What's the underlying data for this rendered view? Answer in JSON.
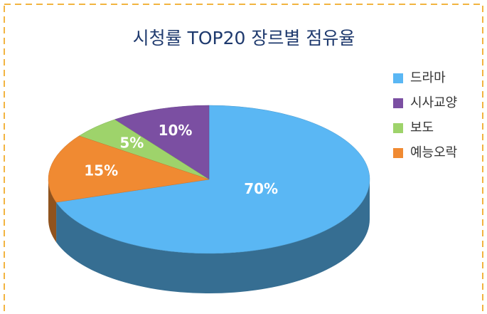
{
  "chart_data": {
    "type": "pie",
    "title": "시청률 TOP20 장르별 점유율",
    "categories": [
      "드라마",
      "시사교양",
      "보도",
      "예능오락"
    ],
    "values": [
      70,
      10,
      5,
      15
    ],
    "value_labels": [
      "70%",
      "10%",
      "5%",
      "15%"
    ],
    "colors": [
      "#5ab7f4",
      "#7b4fa2",
      "#9ed36b",
      "#f08a32"
    ],
    "legend": "right"
  }
}
